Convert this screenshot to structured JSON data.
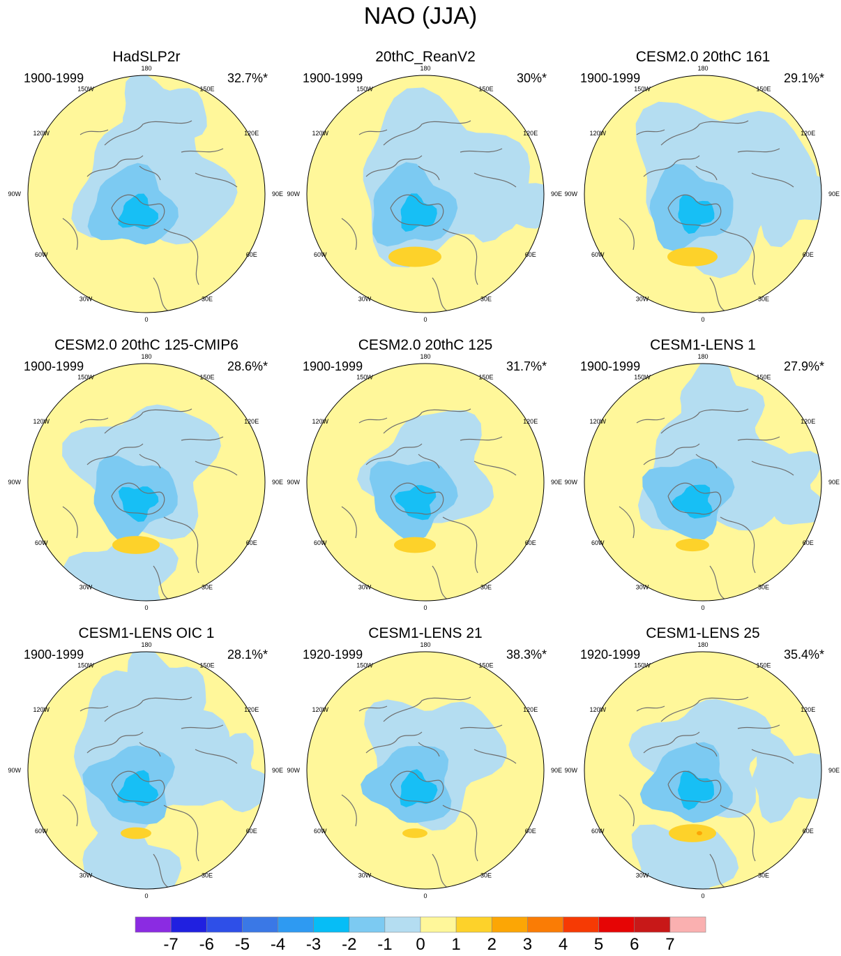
{
  "title": "NAO (JJA)",
  "panels": [
    {
      "name": "HadSLP2r",
      "period": "1900-1999",
      "percent": "32.7%*",
      "variant": 0
    },
    {
      "name": "20thC_ReanV2",
      "period": "1900-1999",
      "percent": "30%*",
      "variant": 1
    },
    {
      "name": "CESM2.0 20thC 161",
      "period": "1900-1999",
      "percent": "29.1%*",
      "variant": 2
    },
    {
      "name": "CESM2.0 20thC 125-CMIP6",
      "period": "1900-1999",
      "percent": "28.6%*",
      "variant": 3
    },
    {
      "name": "CESM2.0 20thC 125",
      "period": "1900-1999",
      "percent": "31.7%*",
      "variant": 4
    },
    {
      "name": "CESM1-LENS 1",
      "period": "1900-1999",
      "percent": "27.9%*",
      "variant": 5
    },
    {
      "name": "CESM1-LENS OIC 1",
      "period": "1900-1999",
      "percent": "28.1%*",
      "variant": 6
    },
    {
      "name": "CESM1-LENS 21",
      "period": "1920-1999",
      "percent": "38.3%*",
      "variant": 7
    },
    {
      "name": "CESM1-LENS 25",
      "period": "1920-1999",
      "percent": "35.4%*",
      "variant": 8
    }
  ],
  "lon_labels": [
    "180",
    "150E",
    "120E",
    "90E",
    "60E",
    "30E",
    "0",
    "30W",
    "60W",
    "90W",
    "120W",
    "150W"
  ],
  "colorbar": {
    "colors": [
      "#8B2BE2",
      "#2020E0",
      "#2E4FE8",
      "#3A78E6",
      "#2E9AF2",
      "#06BDF6",
      "#7CCAF2",
      "#B4DDF1",
      "#FFF79A",
      "#FDD22A",
      "#FCA605",
      "#FA7C05",
      "#F63A04",
      "#E60505",
      "#C81818",
      "#FAB0B0"
    ],
    "labels": [
      "-7",
      "-6",
      "-5",
      "-4",
      "-3",
      "-2",
      "-1",
      "0",
      "1",
      "2",
      "3",
      "4",
      "5",
      "6",
      "7"
    ]
  }
}
